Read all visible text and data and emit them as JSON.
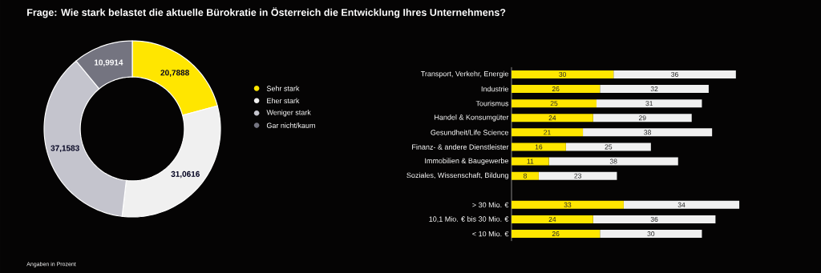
{
  "chart_data": [
    {
      "type": "donut",
      "title": "Frage: Wie stark belastet die aktuelle Bürokratie in Österreich die Entwicklung Ihres Unternehmens?",
      "categories": [
        "Sehr stark",
        "Eher stark",
        "Weniger stark",
        "Gar nicht/kaum"
      ],
      "values": [
        20.7888,
        31.0616,
        37.1583,
        10.9914
      ],
      "value_labels": [
        "20,7888",
        "31,0616",
        "37,1583",
        "10,9914"
      ],
      "colors": [
        "#ffe600",
        "#f0f0f0",
        "#c4c4cd",
        "#747480"
      ],
      "legend": "right",
      "annotations": [
        "Angaben in Prozent"
      ]
    },
    {
      "type": "bar",
      "orientation": "horizontal",
      "stacked": true,
      "data_labels": true,
      "categories": [
        "Transport, Verkehr, Energie",
        "Industrie",
        "Tourismus",
        "Handel & Konsumgüter",
        "Gesundheit/Life Science",
        "Finanz- & andere Dienstleister",
        "Immobilien & Baugewerbe",
        "Soziales, Wissenschaft, Bildung",
        null,
        "> 30 Mio. €",
        "10,1 Mio. € bis 30 Mio. €",
        "< 10 Mio. €"
      ],
      "series": [
        {
          "color": "#ffe600",
          "values": [
            30,
            26,
            25,
            24,
            21,
            16,
            11,
            8,
            null,
            33,
            24,
            26
          ]
        },
        {
          "color": "#f0f0f0",
          "values": [
            36,
            32,
            31,
            29,
            38,
            25,
            38,
            23,
            null,
            34,
            36,
            30
          ]
        }
      ]
    }
  ]
}
